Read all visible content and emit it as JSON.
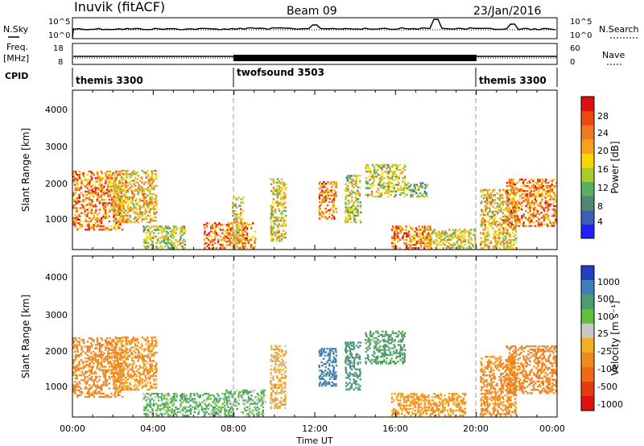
{
  "header": {
    "station": "Inuvik (fitACF)",
    "beam": "Beam 09",
    "date": "23/Jan/2016"
  },
  "timeseries": {
    "nsky_label": "N.Sky",
    "nsky_ticks": [
      "10^5",
      "10^0"
    ],
    "nsearch_label": "N.Search",
    "nsearch_ticks": [
      "10^5",
      "10^0"
    ],
    "freq_label": "Freq.",
    "freq_unit": "[MHz]",
    "freq_ticks": [
      "18",
      "8"
    ],
    "nave_label": "Nave",
    "nave_ticks": [
      "60",
      "0"
    ],
    "cpid_label": "CPID"
  },
  "cpid_segments": [
    {
      "name": "themis 3300",
      "start_h": 0,
      "end_h": 8
    },
    {
      "name": "twofsound 3503",
      "start_h": 8,
      "end_h": 20
    },
    {
      "name": "themis 3300",
      "start_h": 20,
      "end_h": 24
    }
  ],
  "axes": {
    "x_ticks": [
      "00:00",
      "04:00",
      "08:00",
      "12:00",
      "16:00",
      "20:00",
      "00:00"
    ],
    "x_label": "Time UT",
    "y_label": "Slant Range [km]",
    "y_ticks": [
      "1000",
      "2000",
      "3000",
      "4000"
    ]
  },
  "power_colorbar": {
    "label": "Power [dB]",
    "ticks": [
      "4",
      "8",
      "12",
      "16",
      "20",
      "24",
      "28"
    ],
    "colors": [
      "#2020ff",
      "#3a5fb8",
      "#4f8a70",
      "#58b060",
      "#a8cc30",
      "#f5d800",
      "#f7a21a",
      "#f07820",
      "#ec4a10",
      "#e01010"
    ]
  },
  "velocity_colorbar": {
    "label": "Velocity [m s⁻¹]",
    "ticks": [
      "1000",
      "500",
      "100",
      "25",
      "-25",
      "-100",
      "-500",
      "-1000"
    ],
    "colors": [
      "#2040c0",
      "#3f7fb8",
      "#4f9a70",
      "#60c040",
      "#c8c8c8",
      "#f2b020",
      "#f08a20",
      "#f06a14",
      "#e83a10",
      "#e01010"
    ]
  },
  "chart_data": [
    {
      "type": "line",
      "title": "N.Sky / N.Search",
      "x_range_hours": [
        0,
        24
      ],
      "y_scale": "log",
      "ylim": [
        "10^0",
        "10^5"
      ]
    },
    {
      "type": "line",
      "title": "Freq. / Nave",
      "x_range_hours": [
        0,
        24
      ],
      "freq_ylim_mhz": [
        8,
        18
      ],
      "nave_ylim": [
        0,
        60
      ]
    },
    {
      "type": "heatmap",
      "quantity": "Power [dB]",
      "x_range_hours": [
        0,
        24
      ],
      "ylim_km": [
        180,
        4500
      ],
      "color_range_db": [
        0,
        30
      ],
      "blobs": [
        {
          "t0": 0.0,
          "t1": 2.5,
          "r0": 700,
          "r1": 2300,
          "v": 22
        },
        {
          "t0": 2.0,
          "t1": 4.2,
          "r0": 900,
          "r1": 2300,
          "v": 18
        },
        {
          "t0": 3.5,
          "t1": 5.5,
          "r0": 200,
          "r1": 800,
          "v": 14
        },
        {
          "t0": 6.5,
          "t1": 9.0,
          "r0": 200,
          "r1": 900,
          "v": 22
        },
        {
          "t0": 7.9,
          "t1": 8.4,
          "r0": 400,
          "r1": 1600,
          "v": 18
        },
        {
          "t0": 9.8,
          "t1": 10.5,
          "r0": 400,
          "r1": 2100,
          "v": 16
        },
        {
          "t0": 12.2,
          "t1": 13.0,
          "r0": 1000,
          "r1": 2000,
          "v": 22
        },
        {
          "t0": 13.5,
          "t1": 14.2,
          "r0": 900,
          "r1": 2200,
          "v": 14
        },
        {
          "t0": 14.5,
          "t1": 16.5,
          "r0": 1600,
          "r1": 2500,
          "v": 14
        },
        {
          "t0": 15.8,
          "t1": 17.8,
          "r0": 200,
          "r1": 800,
          "v": 22
        },
        {
          "t0": 16.5,
          "t1": 17.6,
          "r0": 1600,
          "r1": 2000,
          "v": 12
        },
        {
          "t0": 17.5,
          "t1": 20.0,
          "r0": 200,
          "r1": 700,
          "v": 16
        },
        {
          "t0": 20.2,
          "t1": 22.0,
          "r0": 200,
          "r1": 1800,
          "v": 18
        },
        {
          "t0": 21.5,
          "t1": 24.0,
          "r0": 800,
          "r1": 2100,
          "v": 22
        }
      ]
    },
    {
      "type": "heatmap",
      "quantity": "Velocity [m s-1]",
      "x_range_hours": [
        0,
        24
      ],
      "ylim_km": [
        180,
        4500
      ],
      "color_range_ms": [
        -1000,
        1000
      ],
      "blobs": [
        {
          "t0": 0.0,
          "t1": 2.5,
          "r0": 700,
          "r1": 2300,
          "v": -180
        },
        {
          "t0": 2.0,
          "t1": 4.2,
          "r0": 900,
          "r1": 2300,
          "v": -140
        },
        {
          "t0": 3.5,
          "t1": 7.5,
          "r0": 200,
          "r1": 800,
          "v": 80
        },
        {
          "t0": 7.5,
          "t1": 9.5,
          "r0": 200,
          "r1": 900,
          "v": 80
        },
        {
          "t0": 9.8,
          "t1": 10.5,
          "r0": 400,
          "r1": 2100,
          "v": -60
        },
        {
          "t0": 12.2,
          "t1": 13.0,
          "r0": 1000,
          "r1": 2000,
          "v": 300
        },
        {
          "t0": 13.5,
          "t1": 14.2,
          "r0": 900,
          "r1": 2200,
          "v": 200
        },
        {
          "t0": 14.5,
          "t1": 16.5,
          "r0": 1600,
          "r1": 2500,
          "v": 150
        },
        {
          "t0": 15.8,
          "t1": 19.5,
          "r0": 200,
          "r1": 800,
          "v": -120
        },
        {
          "t0": 20.2,
          "t1": 22.0,
          "r0": 200,
          "r1": 1800,
          "v": -160
        },
        {
          "t0": 21.5,
          "t1": 24.0,
          "r0": 800,
          "r1": 2100,
          "v": -200
        }
      ]
    }
  ]
}
